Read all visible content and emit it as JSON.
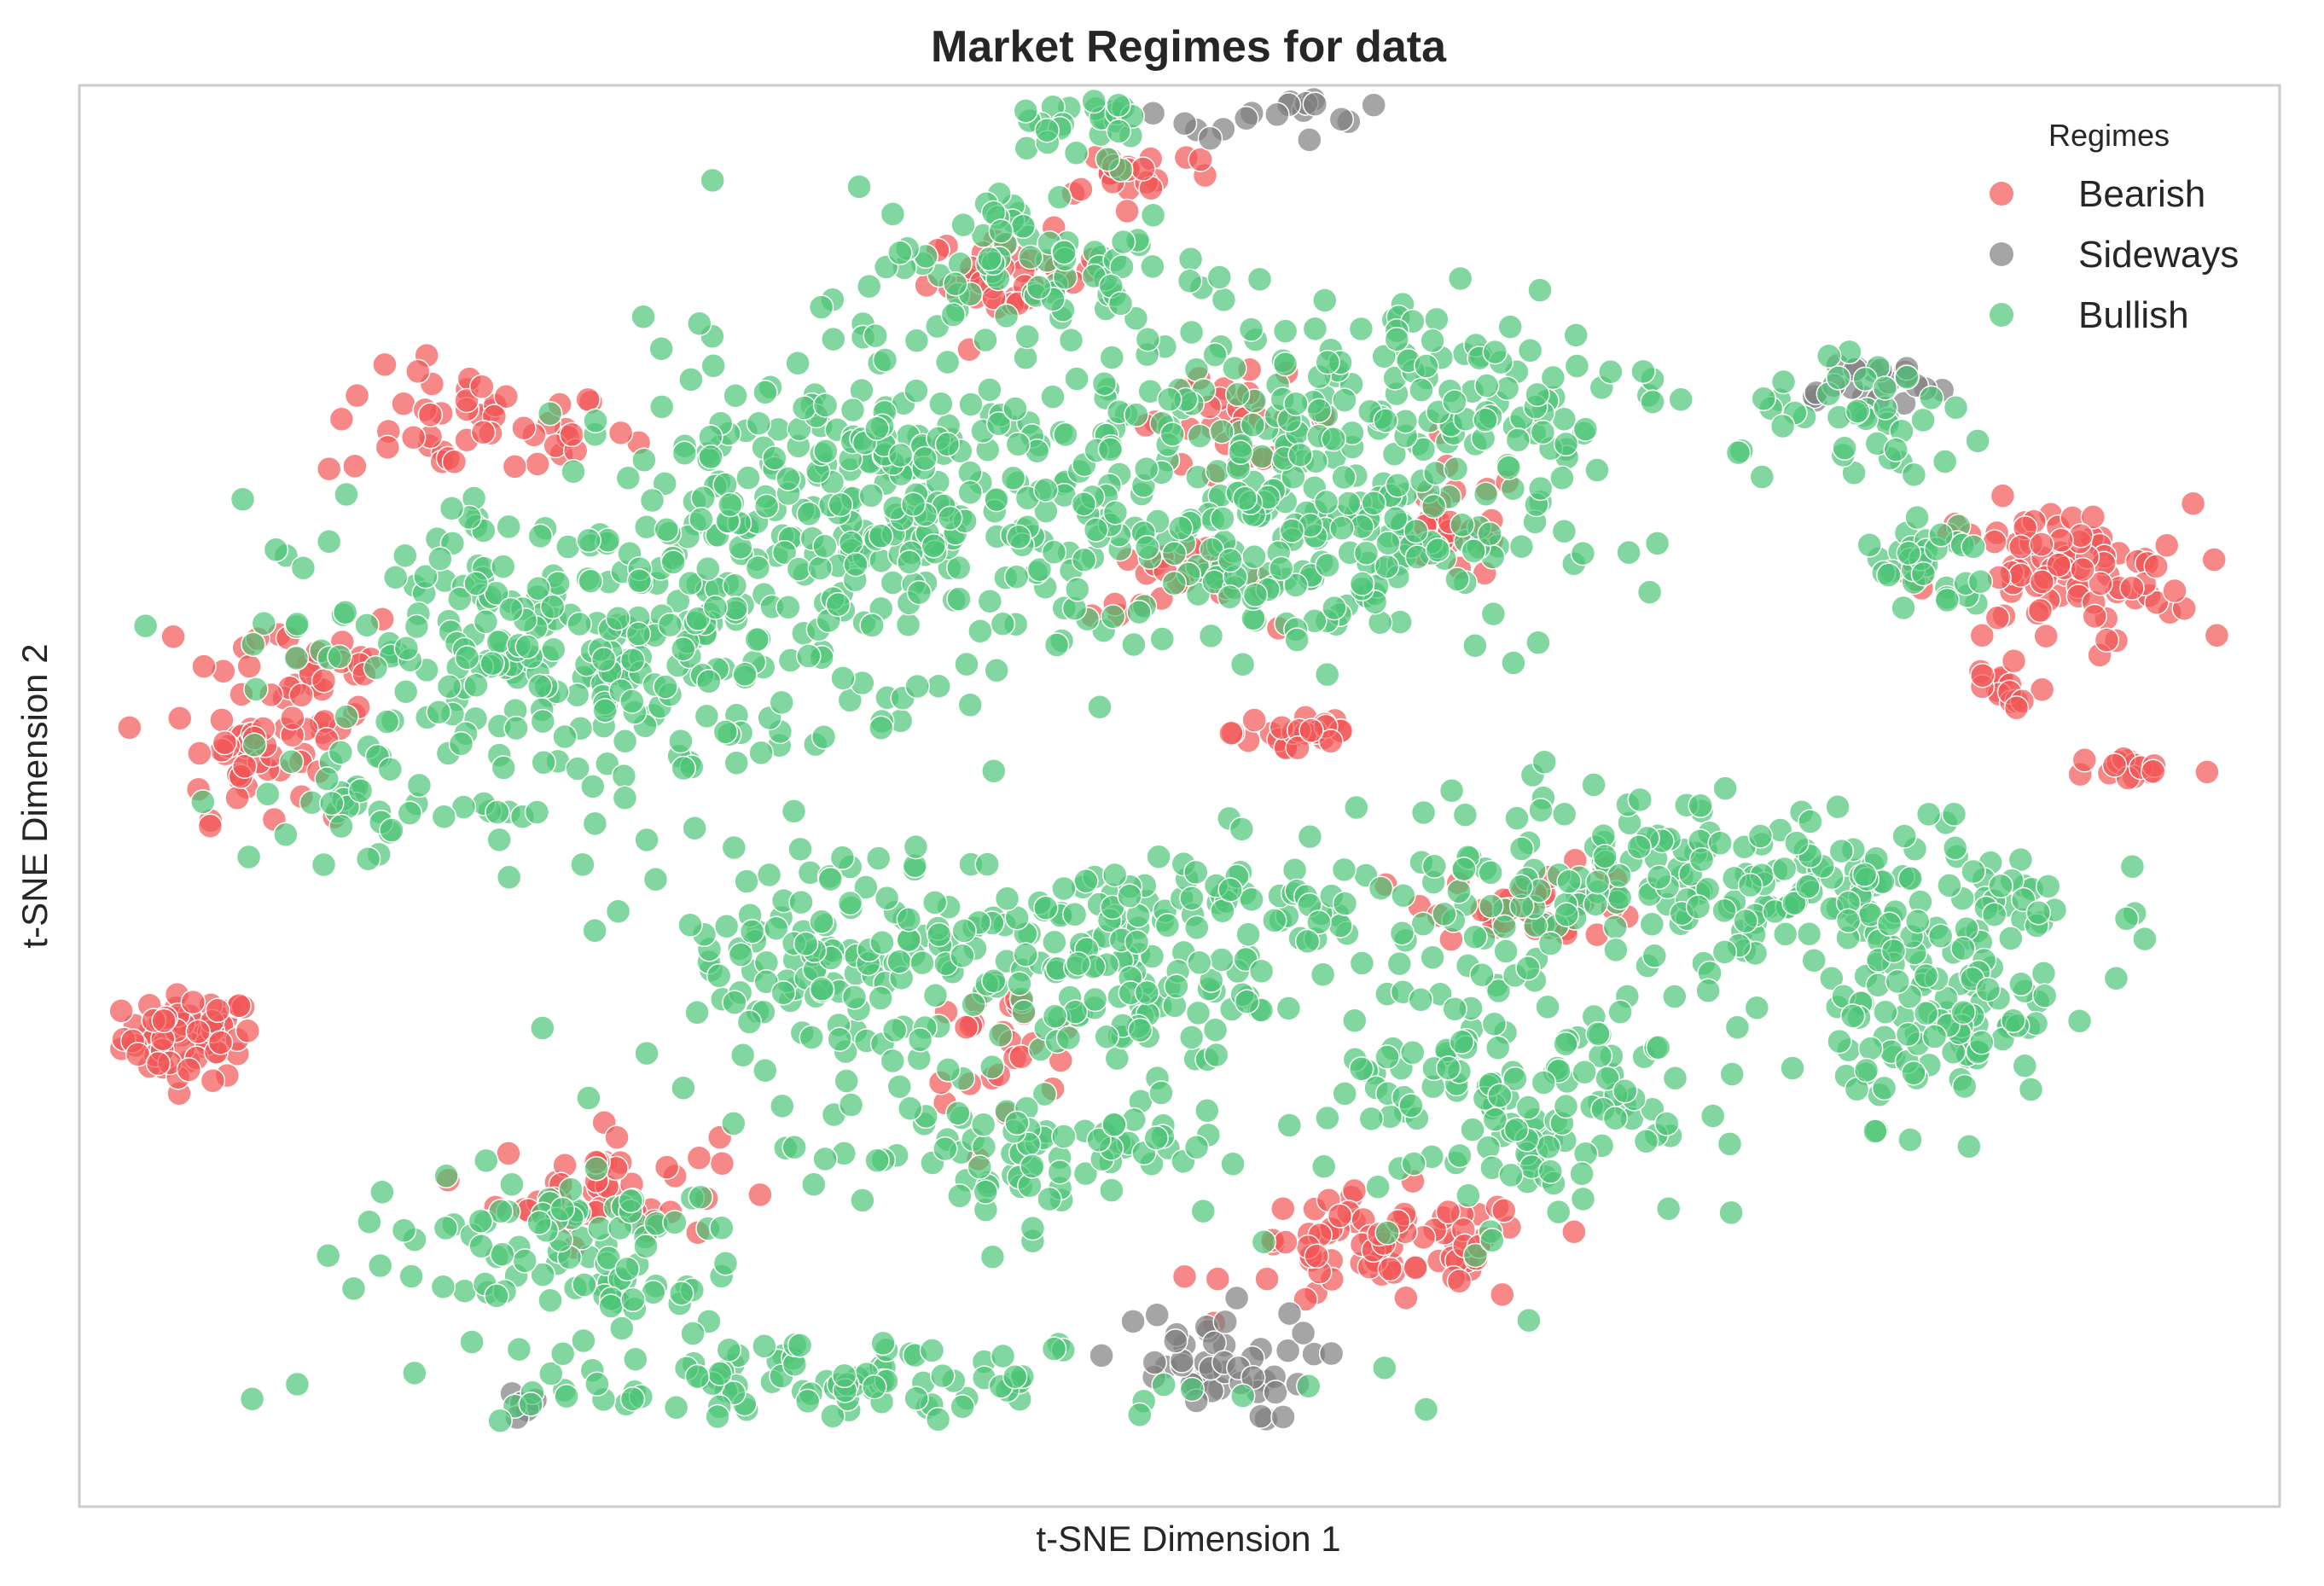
{
  "chart_data": {
    "type": "scatter",
    "title": "Market Regimes for data",
    "xlabel": "t-SNE Dimension 1",
    "ylabel": "t-SNE Dimension 2",
    "xlim": [
      -100,
      100
    ],
    "ylim": [
      -100,
      100
    ],
    "grid": false,
    "ticks_visible": false,
    "legend": {
      "title": "Regimes",
      "placement": "top-right"
    },
    "series": [
      {
        "name": "Bearish",
        "color": "#f25555",
        "clusters": [
          {
            "cx": -90,
            "cy": -34,
            "sx": 3,
            "sy": 3,
            "n": 70
          },
          {
            "cx": -64,
            "cy": 52,
            "sx": 7,
            "sy": 4,
            "n": 50
          },
          {
            "cx": -80,
            "cy": 16,
            "sx": 5,
            "sy": 6,
            "n": 45
          },
          {
            "cx": -85,
            "cy": 5,
            "sx": 3,
            "sy": 4,
            "n": 35
          },
          {
            "cx": -52,
            "cy": -55,
            "sx": 5,
            "sy": 4,
            "n": 45
          },
          {
            "cx": -15,
            "cy": 73,
            "sx": 4,
            "sy": 3,
            "n": 35
          },
          {
            "cx": 5,
            "cy": 53,
            "sx": 5,
            "sy": 3,
            "n": 30
          },
          {
            "cx": 0,
            "cy": 30,
            "sx": 4,
            "sy": 2.5,
            "n": 25
          },
          {
            "cx": 11,
            "cy": 9,
            "sx": 3,
            "sy": 2,
            "n": 25
          },
          {
            "cx": 25,
            "cy": 38,
            "sx": 3,
            "sy": 4,
            "n": 25
          },
          {
            "cx": 19,
            "cy": -64,
            "sx": 7,
            "sy": 4,
            "n": 80
          },
          {
            "cx": 33,
            "cy": -15,
            "sx": 5,
            "sy": 2.5,
            "n": 35
          },
          {
            "cx": -16,
            "cy": -35,
            "sx": 4,
            "sy": 4,
            "n": 25
          },
          {
            "cx": 80,
            "cy": 31,
            "sx": 6,
            "sy": 5,
            "n": 90
          },
          {
            "cx": 75,
            "cy": 15,
            "sx": 2,
            "sy": 3,
            "n": 15
          },
          {
            "cx": 87,
            "cy": 4,
            "sx": 3,
            "sy": 1,
            "n": 15
          },
          {
            "cx": -4,
            "cy": 88,
            "sx": 4,
            "sy": 2,
            "n": 20
          }
        ]
      },
      {
        "name": "Sideways",
        "color": "#7f7f7f",
        "clusters": [
          {
            "cx": 10,
            "cy": 102,
            "sx": 5,
            "sy": 5,
            "n": 60
          },
          {
            "cx": 62,
            "cy": 58,
            "sx": 4,
            "sy": 2,
            "n": 20
          },
          {
            "cx": 2,
            "cy": -80,
            "sx": 5,
            "sy": 4,
            "n": 45
          },
          {
            "cx": -59,
            "cy": -86,
            "sx": 1,
            "sy": 1,
            "n": 6
          }
        ]
      },
      {
        "name": "Bullish",
        "color": "#4dc476",
        "clusters": [
          {
            "cx": -55,
            "cy": 20,
            "sx": 13,
            "sy": 10,
            "n": 260
          },
          {
            "cx": -25,
            "cy": 40,
            "sx": 16,
            "sy": 11,
            "n": 360
          },
          {
            "cx": 12,
            "cy": 38,
            "sx": 11,
            "sy": 9,
            "n": 220
          },
          {
            "cx": 20,
            "cy": 58,
            "sx": 13,
            "sy": 7,
            "n": 120
          },
          {
            "cx": -12,
            "cy": 74,
            "sx": 9,
            "sy": 6,
            "n": 90
          },
          {
            "cx": -30,
            "cy": -22,
            "sx": 10,
            "sy": 8,
            "n": 160
          },
          {
            "cx": -5,
            "cy": -25,
            "sx": 6,
            "sy": 8,
            "n": 110
          },
          {
            "cx": -15,
            "cy": -50,
            "sx": 10,
            "sy": 5,
            "n": 90
          },
          {
            "cx": -57,
            "cy": -64,
            "sx": 9,
            "sy": 6,
            "n": 100
          },
          {
            "cx": 31,
            "cy": -40,
            "sx": 8,
            "sy": 11,
            "n": 160
          },
          {
            "cx": 38,
            "cy": -10,
            "sx": 11,
            "sy": 6,
            "n": 110
          },
          {
            "cx": 62,
            "cy": -16,
            "sx": 10,
            "sy": 7,
            "n": 150
          },
          {
            "cx": 70,
            "cy": -33,
            "sx": 5,
            "sy": 6,
            "n": 80
          },
          {
            "cx": 63,
            "cy": 52,
            "sx": 6,
            "sy": 4,
            "n": 40
          },
          {
            "cx": 68,
            "cy": 32,
            "sx": 3,
            "sy": 4,
            "n": 35
          },
          {
            "cx": -10,
            "cy": 94,
            "sx": 5,
            "sy": 3,
            "n": 30
          },
          {
            "cx": 9,
            "cy": -16,
            "sx": 5,
            "sy": 5,
            "n": 40
          },
          {
            "cx": -35,
            "cy": -82,
            "sx": 18,
            "sy": 2.5,
            "n": 110
          },
          {
            "cx": -72,
            "cy": 0,
            "sx": 6,
            "sy": 5,
            "n": 40
          }
        ]
      }
    ]
  }
}
